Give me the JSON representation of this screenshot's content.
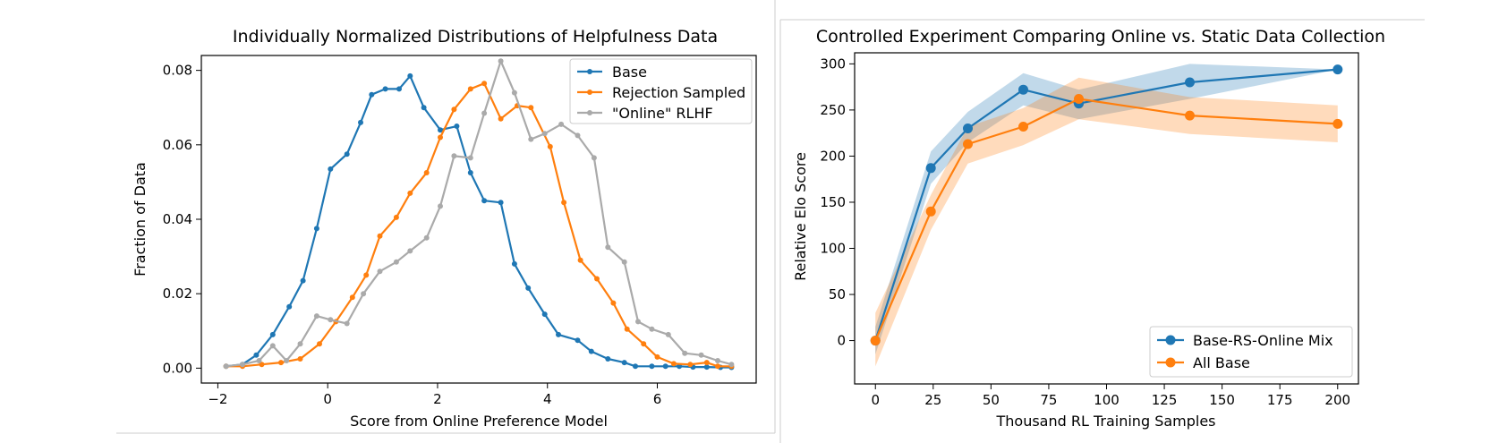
{
  "chart_data": [
    {
      "type": "line",
      "title": "Individually Normalized Distributions of Helpfulness Data",
      "xlabel": "Score from Online Preference Model",
      "ylabel": "Fraction of Data",
      "xlim": [
        -2.3,
        7.8
      ],
      "ylim": [
        -0.004,
        0.084
      ],
      "xticks": [
        -2,
        0,
        2,
        4,
        6
      ],
      "xtick_labels": [
        "−2",
        "0",
        "2",
        "4",
        "6"
      ],
      "yticks": [
        0.0,
        0.02,
        0.04,
        0.06,
        0.08
      ],
      "ytick_labels": [
        "0.00",
        "0.02",
        "0.04",
        "0.06",
        "0.08"
      ],
      "grid": false,
      "legend": "top-right",
      "x": [
        -1.8,
        -1.6,
        -1.4,
        -1.2,
        -1.0,
        -0.8,
        -0.6,
        -0.4,
        -0.2,
        0.0,
        0.2,
        0.4,
        0.6,
        0.8,
        1.0,
        1.2,
        1.4,
        1.6,
        1.8,
        2.0,
        2.2,
        2.4,
        2.6,
        2.8,
        3.0,
        3.2,
        3.4,
        3.6,
        3.8,
        4.0,
        4.2,
        4.4,
        4.6,
        4.8,
        5.0,
        5.2,
        5.4,
        5.6,
        5.8,
        6.0,
        6.2,
        6.4,
        6.6,
        6.8,
        7.0,
        7.2
      ],
      "series": [
        {
          "name": "Base",
          "color": "#1f77b4",
          "x": [
            -1.85,
            -1.55,
            -1.3,
            -1.0,
            -0.7,
            -0.45,
            -0.2,
            0.05,
            0.35,
            0.6,
            0.8,
            1.05,
            1.3,
            1.5,
            1.75,
            2.05,
            2.35,
            2.6,
            2.85,
            3.15,
            3.4,
            3.65,
            3.95,
            4.2,
            4.55,
            4.8,
            5.1,
            5.4,
            5.6,
            5.9,
            6.15,
            6.4,
            6.65,
            6.9,
            7.15,
            7.35
          ],
          "values": [
            0.0005,
            0.001,
            0.0035,
            0.009,
            0.0165,
            0.0235,
            0.0375,
            0.0535,
            0.0575,
            0.066,
            0.0735,
            0.075,
            0.075,
            0.0785,
            0.07,
            0.064,
            0.065,
            0.0525,
            0.045,
            0.0445,
            0.028,
            0.0215,
            0.0145,
            0.009,
            0.0075,
            0.0045,
            0.0025,
            0.0015,
            0.0005,
            0.0005,
            0.0005,
            0.0005,
            0.0003,
            0.0003,
            0.0002,
            0.0002
          ]
        },
        {
          "name": "Rejection Sampled",
          "color": "#ff7f0e",
          "x": [
            -1.85,
            -1.55,
            -1.2,
            -0.85,
            -0.5,
            -0.15,
            0.15,
            0.45,
            0.7,
            0.95,
            1.25,
            1.5,
            1.8,
            2.05,
            2.3,
            2.6,
            2.85,
            3.15,
            3.45,
            3.7,
            4.05,
            4.3,
            4.6,
            4.9,
            5.2,
            5.45,
            5.75,
            6.0,
            6.3,
            6.6,
            6.9,
            7.1,
            7.35
          ],
          "values": [
            0.0005,
            0.0005,
            0.001,
            0.0015,
            0.0025,
            0.0065,
            0.0125,
            0.019,
            0.025,
            0.0355,
            0.0405,
            0.047,
            0.0525,
            0.062,
            0.0695,
            0.075,
            0.0765,
            0.067,
            0.0705,
            0.07,
            0.0595,
            0.0445,
            0.029,
            0.024,
            0.0175,
            0.0105,
            0.0065,
            0.003,
            0.0012,
            0.001,
            0.0015,
            0.0005,
            0.0005
          ]
        },
        {
          "name": "\"Online\" RLHF",
          "color": "#aaaaaa",
          "x": [
            -1.85,
            -1.55,
            -1.25,
            -1.0,
            -0.75,
            -0.5,
            -0.2,
            0.05,
            0.35,
            0.65,
            0.95,
            1.25,
            1.5,
            1.8,
            2.05,
            2.3,
            2.6,
            2.85,
            3.15,
            3.4,
            3.7,
            3.95,
            4.25,
            4.55,
            4.85,
            5.1,
            5.4,
            5.65,
            5.9,
            6.2,
            6.5,
            6.8,
            7.1,
            7.35
          ],
          "values": [
            0.0005,
            0.001,
            0.002,
            0.006,
            0.002,
            0.0065,
            0.014,
            0.013,
            0.012,
            0.02,
            0.026,
            0.0285,
            0.0315,
            0.035,
            0.0435,
            0.057,
            0.0565,
            0.0685,
            0.0825,
            0.074,
            0.0615,
            0.063,
            0.0655,
            0.0625,
            0.0565,
            0.0325,
            0.0285,
            0.0125,
            0.0105,
            0.009,
            0.004,
            0.0035,
            0.002,
            0.001
          ]
        }
      ]
    },
    {
      "type": "line",
      "title": "Controlled Experiment Comparing Online vs. Static Data Collection",
      "xlabel": "Thousand RL Training Samples",
      "ylabel": "Relative Elo Score",
      "xlim": [
        -9,
        209
      ],
      "ylim": [
        -47,
        312
      ],
      "xticks": [
        0,
        25,
        50,
        75,
        100,
        125,
        150,
        175,
        200
      ],
      "yticks": [
        0,
        50,
        100,
        150,
        200,
        250,
        300
      ],
      "grid": false,
      "legend": "bottom-right",
      "series": [
        {
          "name": "Base-RS-Online Mix",
          "color": "#1f77b4",
          "x": [
            0,
            24,
            40,
            64,
            88,
            136,
            200
          ],
          "values": [
            0,
            187,
            230,
            272,
            257,
            280,
            294
          ],
          "lower": [
            -15,
            170,
            215,
            255,
            240,
            262,
            294
          ],
          "upper": [
            15,
            205,
            248,
            290,
            272,
            300,
            294
          ]
        },
        {
          "name": "All Base",
          "color": "#ff7f0e",
          "x": [
            0,
            24,
            40,
            64,
            88,
            136,
            200
          ],
          "values": [
            0,
            140,
            213,
            232,
            262,
            244,
            235
          ],
          "lower": [
            -28,
            120,
            192,
            212,
            240,
            224,
            215
          ],
          "upper": [
            30,
            158,
            232,
            252,
            285,
            264,
            255
          ]
        }
      ]
    }
  ]
}
